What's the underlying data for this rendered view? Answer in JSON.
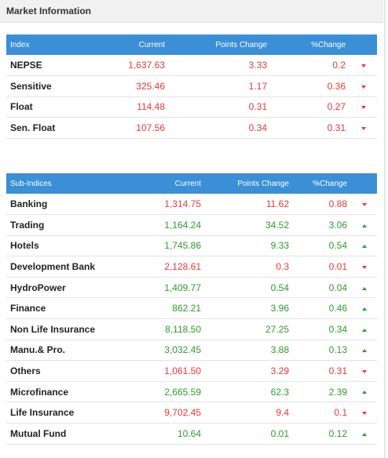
{
  "header": {
    "title": "Market Information"
  },
  "index_table": {
    "columns": [
      "Index",
      "Current",
      "Points Change",
      "%Change"
    ],
    "rows": [
      {
        "name": "NEPSE",
        "current": "1,637.63",
        "points": "3.33",
        "pct": "0.2",
        "dir": "down"
      },
      {
        "name": "Sensitive",
        "current": "325.46",
        "points": "1.17",
        "pct": "0.36",
        "dir": "down"
      },
      {
        "name": "Float",
        "current": "114.48",
        "points": "0.31",
        "pct": "0.27",
        "dir": "down"
      },
      {
        "name": "Sen. Float",
        "current": "107.56",
        "points": "0.34",
        "pct": "0.31",
        "dir": "down"
      }
    ]
  },
  "sub_table": {
    "columns": [
      "Sub-Indices",
      "Current",
      "Points Change",
      "%Change"
    ],
    "rows": [
      {
        "name": "Banking",
        "current": "1,314.75",
        "points": "11.62",
        "pct": "0.88",
        "dir": "down"
      },
      {
        "name": "Trading",
        "current": "1,164.24",
        "points": "34.52",
        "pct": "3.06",
        "dir": "up"
      },
      {
        "name": "Hotels",
        "current": "1,745.86",
        "points": "9.33",
        "pct": "0.54",
        "dir": "up"
      },
      {
        "name": "Development Bank",
        "current": "2,128.61",
        "points": "0.3",
        "pct": "0.01",
        "dir": "down"
      },
      {
        "name": "HydroPower",
        "current": "1,409.77",
        "points": "0.54",
        "pct": "0.04",
        "dir": "up"
      },
      {
        "name": "Finance",
        "current": "862.21",
        "points": "3.96",
        "pct": "0.46",
        "dir": "up"
      },
      {
        "name": "Non Life Insurance",
        "current": "8,118.50",
        "points": "27.25",
        "pct": "0.34",
        "dir": "up"
      },
      {
        "name": "Manu.& Pro.",
        "current": "3,032.45",
        "points": "3.88",
        "pct": "0.13",
        "dir": "up"
      },
      {
        "name": "Others",
        "current": "1,061.50",
        "points": "3.29",
        "pct": "0.31",
        "dir": "down"
      },
      {
        "name": "Microfinance",
        "current": "2,665.59",
        "points": "62.3",
        "pct": "2.39",
        "dir": "up"
      },
      {
        "name": "Life Insurance",
        "current": "9,702.45",
        "points": "9.4",
        "pct": "0.1",
        "dir": "down"
      },
      {
        "name": "Mutual Fund",
        "current": "10.64",
        "points": "0.01",
        "pct": "0.12",
        "dir": "up"
      }
    ]
  },
  "colors": {
    "header_blue": "#3a8fd6",
    "up": "#2e9b2e",
    "down": "#e53935"
  },
  "icons": {
    "up": "triangle-up-icon",
    "down": "triangle-down-icon"
  }
}
